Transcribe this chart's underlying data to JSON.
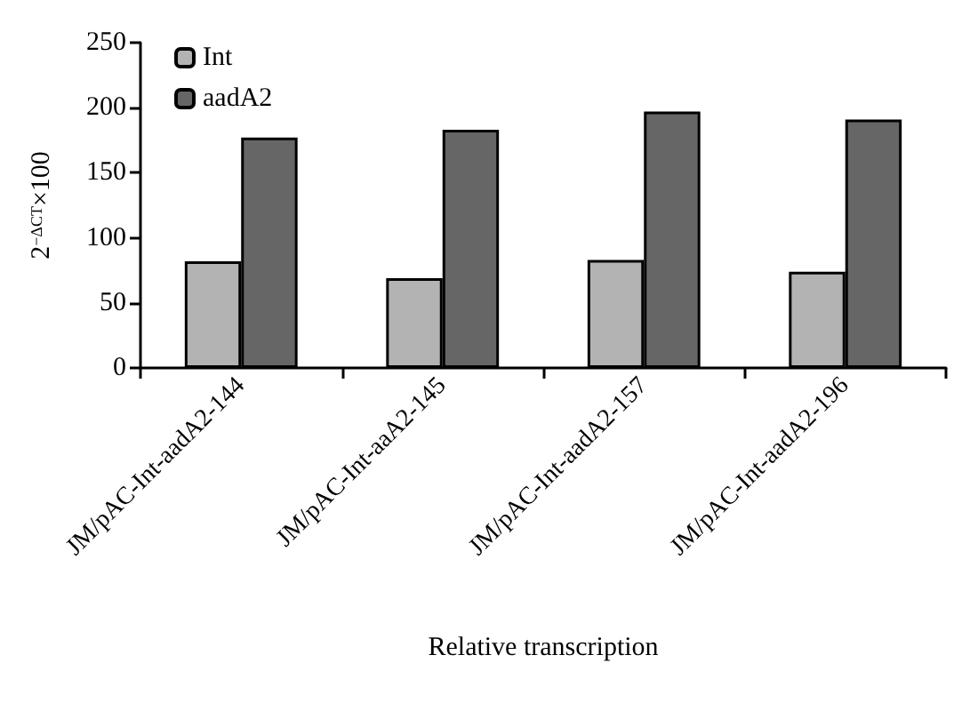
{
  "chart_data": {
    "type": "bar",
    "xlabel": "Relative transcription",
    "ylabel": "2$^{−ΔCT}$×100",
    "categories": [
      "JM/pAC-Int-aadA2-144",
      "JM/pAC-Int-aaA2-145",
      "JM/pAC-Int-aadA2-157",
      "JM/pAC-Int-aadA2-196"
    ],
    "series": [
      {
        "name": "Int",
        "color": "#b3b3b3",
        "values": [
          82,
          69,
          83,
          74
        ]
      },
      {
        "name": "aadA2",
        "color": "#666666",
        "values": [
          177,
          183,
          197,
          191
        ]
      }
    ],
    "ylim": [
      0,
      250
    ],
    "yticks": [
      0,
      50,
      100,
      150,
      200,
      250
    ],
    "grid": false,
    "legend": "top left"
  }
}
